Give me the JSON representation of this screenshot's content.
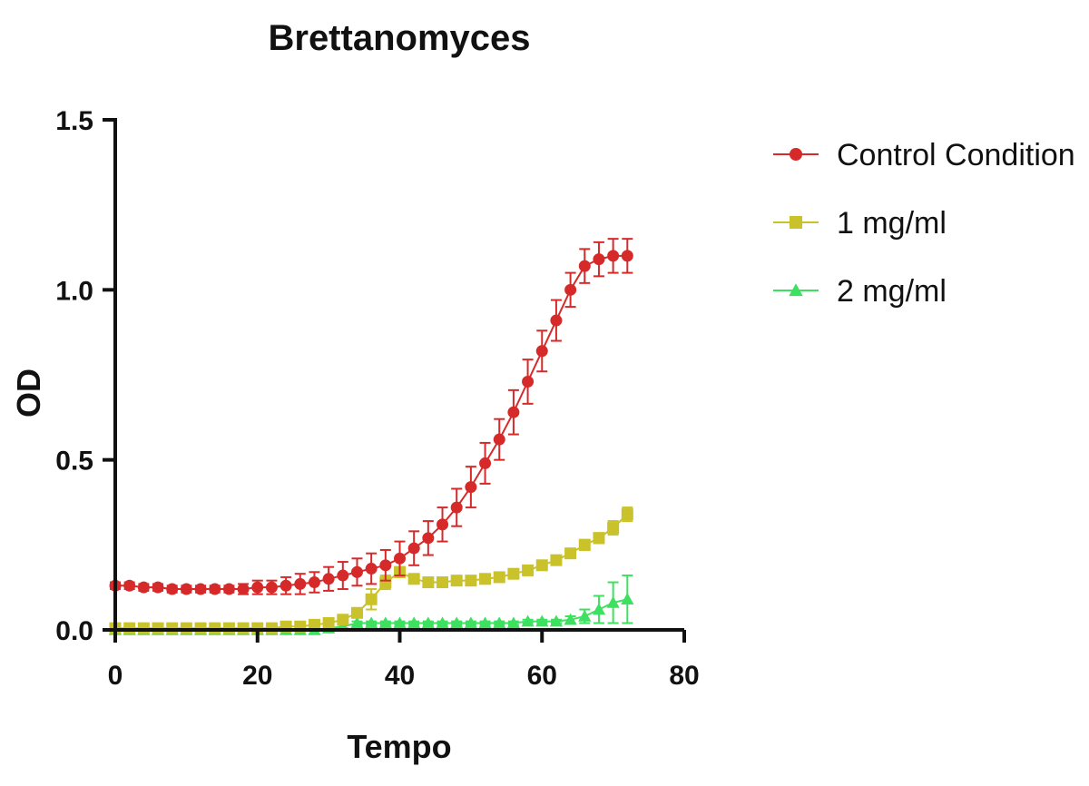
{
  "chart_data": {
    "type": "line",
    "title": "Brettanomyces",
    "xlabel": "Tempo",
    "ylabel": "OD",
    "xlim": [
      0,
      80
    ],
    "ylim": [
      0,
      1.5
    ],
    "xticks": [
      "0",
      "20",
      "40",
      "60",
      "80"
    ],
    "yticks": [
      "0.0",
      "0.5",
      "1.0",
      "1.5"
    ],
    "grid": false,
    "legend_position": "right",
    "x": [
      0,
      2,
      4,
      6,
      8,
      10,
      12,
      14,
      16,
      18,
      20,
      22,
      24,
      26,
      28,
      30,
      32,
      34,
      36,
      38,
      40,
      42,
      44,
      46,
      48,
      50,
      52,
      54,
      56,
      58,
      60,
      62,
      64,
      66,
      68,
      70,
      72
    ],
    "series": [
      {
        "name": "Control Condition",
        "color": "#d62a2a",
        "marker": "circle",
        "values": [
          0.13,
          0.13,
          0.125,
          0.125,
          0.12,
          0.12,
          0.12,
          0.12,
          0.12,
          0.12,
          0.125,
          0.125,
          0.13,
          0.135,
          0.14,
          0.15,
          0.16,
          0.17,
          0.18,
          0.19,
          0.21,
          0.24,
          0.27,
          0.31,
          0.36,
          0.42,
          0.49,
          0.56,
          0.64,
          0.73,
          0.82,
          0.91,
          1.0,
          1.07,
          1.09,
          1.1,
          1.1
        ],
        "errors": [
          0.01,
          0.01,
          0.01,
          0.01,
          0.01,
          0.01,
          0.01,
          0.01,
          0.01,
          0.015,
          0.02,
          0.02,
          0.025,
          0.03,
          0.03,
          0.035,
          0.04,
          0.04,
          0.045,
          0.045,
          0.05,
          0.05,
          0.05,
          0.05,
          0.055,
          0.06,
          0.06,
          0.06,
          0.065,
          0.065,
          0.06,
          0.06,
          0.05,
          0.05,
          0.05,
          0.05,
          0.05
        ]
      },
      {
        "name": "1 mg/ml",
        "color": "#c9c22a",
        "marker": "square",
        "values": [
          0.005,
          0.005,
          0.005,
          0.005,
          0.005,
          0.005,
          0.005,
          0.005,
          0.005,
          0.005,
          0.005,
          0.005,
          0.01,
          0.01,
          0.015,
          0.02,
          0.03,
          0.05,
          0.09,
          0.14,
          0.17,
          0.15,
          0.14,
          0.14,
          0.145,
          0.145,
          0.15,
          0.155,
          0.165,
          0.175,
          0.19,
          0.205,
          0.225,
          0.25,
          0.27,
          0.3,
          0.34
        ],
        "errors": [
          0.005,
          0.005,
          0.005,
          0.005,
          0.005,
          0.005,
          0.005,
          0.005,
          0.005,
          0.005,
          0.005,
          0.005,
          0.005,
          0.005,
          0.005,
          0.005,
          0.005,
          0.01,
          0.03,
          0.02,
          0.015,
          0.01,
          0.01,
          0.01,
          0.01,
          0.01,
          0.01,
          0.01,
          0.01,
          0.01,
          0.01,
          0.01,
          0.01,
          0.015,
          0.015,
          0.02,
          0.02
        ]
      },
      {
        "name": "2 mg/ml",
        "color": "#3ee060",
        "marker": "triangle",
        "values": [
          0.0,
          0.0,
          0.0,
          0.0,
          0.0,
          0.0,
          0.0,
          0.0,
          0.0,
          0.0,
          0.0,
          0.0,
          0.0,
          0.0,
          0.0,
          0.005,
          0.01,
          0.02,
          0.02,
          0.02,
          0.02,
          0.02,
          0.02,
          0.02,
          0.02,
          0.02,
          0.02,
          0.02,
          0.02,
          0.025,
          0.025,
          0.025,
          0.03,
          0.04,
          0.06,
          0.08,
          0.09
        ],
        "errors": [
          0.0,
          0.0,
          0.0,
          0.0,
          0.0,
          0.0,
          0.0,
          0.0,
          0.0,
          0.0,
          0.0,
          0.0,
          0.0,
          0.0,
          0.0,
          0.005,
          0.005,
          0.005,
          0.005,
          0.005,
          0.005,
          0.005,
          0.005,
          0.005,
          0.005,
          0.005,
          0.005,
          0.005,
          0.005,
          0.005,
          0.005,
          0.005,
          0.01,
          0.02,
          0.04,
          0.06,
          0.07
        ]
      }
    ]
  }
}
